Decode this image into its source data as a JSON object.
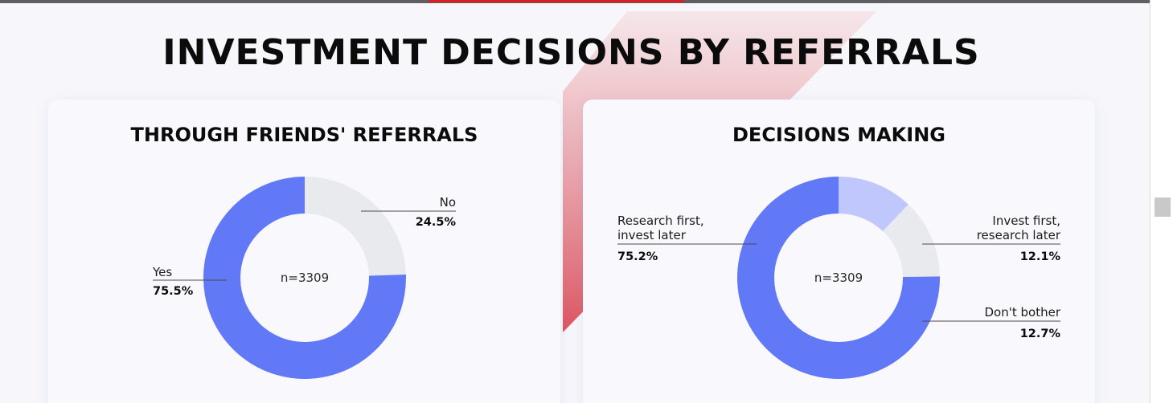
{
  "title": "INVESTMENT DECISIONS BY REFERRALS",
  "colors": {
    "primary": "#6279f7",
    "light_blue": "#c0c7fd",
    "grey": "#e8eaee",
    "accent": "#d61f26"
  },
  "chart_data": [
    {
      "type": "pie",
      "title": "THROUGH FRIENDS' REFERRALS",
      "center_label": "n=3309",
      "slices": [
        {
          "label": "No",
          "value": 24.5,
          "value_label": "24.5%",
          "color": "#e8eaee"
        },
        {
          "label": "Yes",
          "value": 75.5,
          "value_label": "75.5%",
          "color": "#6279f7"
        }
      ]
    },
    {
      "type": "pie",
      "title": "DECISIONS MAKING",
      "center_label": "n=3309",
      "slices": [
        {
          "label": "Invest first, research later",
          "label_lines": [
            "Invest first,",
            "research later"
          ],
          "value": 12.1,
          "value_label": "12.1%",
          "color": "#c0c7fd"
        },
        {
          "label": "Don't bother",
          "label_lines": [
            "Don't bother"
          ],
          "value": 12.7,
          "value_label": "12.7%",
          "color": "#e8eaee"
        },
        {
          "label": "Research first, invest later",
          "label_lines": [
            "Research first,",
            "invest later"
          ],
          "value": 75.2,
          "value_label": "75.2%",
          "color": "#6279f7"
        }
      ]
    }
  ]
}
